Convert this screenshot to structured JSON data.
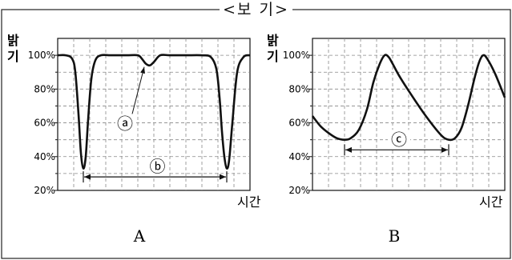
{
  "box_title": "<보 기>",
  "chart_data": [
    {
      "type": "line",
      "panel_label": "A",
      "ylabel": "밝기",
      "xlabel": "시간",
      "yticks": [
        "20%",
        "40%",
        "60%",
        "80%",
        "100%"
      ],
      "ylim": [
        20,
        110
      ],
      "xlim": [
        0,
        12
      ],
      "grid": true,
      "series": [
        {
          "x": [
            0,
            0.5,
            0.9,
            1.1,
            1.3,
            1.45,
            1.6,
            1.75,
            1.9,
            2.1,
            2.35,
            2.7,
            3.3,
            4.3,
            5.0,
            5.25,
            5.5,
            5.75,
            6.0,
            6.4,
            7.0,
            8.0,
            9.0,
            9.55,
            9.9,
            10.1,
            10.25,
            10.4,
            10.55,
            10.7,
            10.9,
            11.2,
            11.6,
            12
          ],
          "y": [
            100,
            100,
            98,
            90,
            65,
            42,
            33,
            40,
            62,
            86,
            97,
            100,
            100,
            100,
            100,
            98,
            95,
            94,
            96,
            100,
            100,
            100,
            100,
            99,
            92,
            75,
            55,
            40,
            33,
            38,
            60,
            90,
            99,
            100
          ]
        }
      ],
      "annotations": [
        {
          "label": "ⓐ",
          "points_to": [
            5.5,
            95
          ]
        },
        {
          "label": "ⓑ",
          "span_x": [
            1.6,
            10.55
          ],
          "at_y": 28
        }
      ]
    },
    {
      "type": "line",
      "panel_label": "B",
      "ylabel": "밝기",
      "xlabel": "시간",
      "yticks": [
        "20%",
        "40%",
        "60%",
        "80%",
        "100%"
      ],
      "ylim": [
        20,
        110
      ],
      "xlim": [
        0,
        12
      ],
      "grid": true,
      "series": [
        {
          "x": [
            0,
            0.5,
            1.0,
            1.5,
            2.0,
            2.4,
            2.9,
            3.4,
            3.8,
            4.2,
            4.5,
            4.75,
            5.0,
            5.4,
            6.0,
            7.0,
            8.0,
            8.5,
            8.9,
            9.3,
            9.7,
            10.1,
            10.4,
            10.65,
            10.9,
            11.4,
            12
          ],
          "y": [
            64,
            58,
            54,
            51,
            50,
            51,
            56,
            68,
            84,
            95,
            100,
            99,
            95,
            88,
            79,
            65,
            53,
            50,
            51,
            57,
            70,
            86,
            96,
            100,
            98,
            89,
            75
          ]
        }
      ],
      "annotations": [
        {
          "label": "ⓒ",
          "span_x": [
            2.0,
            8.5
          ],
          "at_y": 44
        }
      ]
    }
  ]
}
